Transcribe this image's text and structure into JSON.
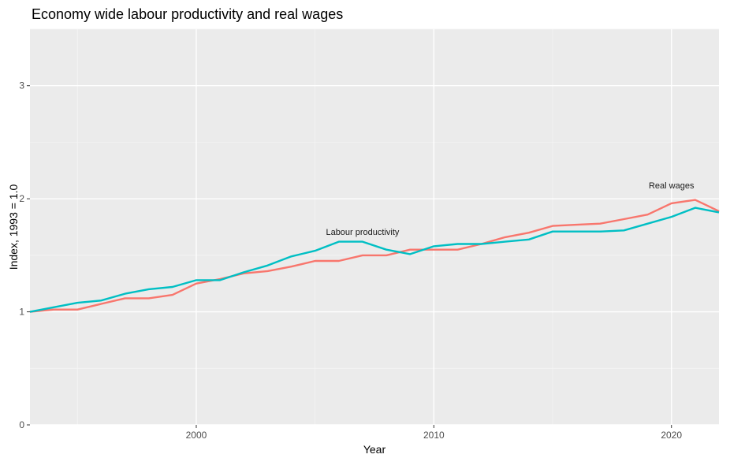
{
  "chart_data": {
    "type": "line",
    "title": "Economy wide labour productivity and real wages",
    "xlabel": "Year",
    "ylabel": "Index, 1993 = 1.0",
    "xlim": [
      1993,
      2022
    ],
    "ylim": [
      0,
      3.5
    ],
    "x_ticks": [
      2000,
      2010,
      2020
    ],
    "x_tick_labels": [
      "2000",
      "2010",
      "2020"
    ],
    "y_ticks": [
      0,
      1,
      2,
      3
    ],
    "y_tick_labels": [
      "0",
      "1",
      "2",
      "3"
    ],
    "grid": true,
    "legend": "none",
    "x": [
      1993,
      1994,
      1995,
      1996,
      1997,
      1998,
      1999,
      2000,
      2001,
      2002,
      2003,
      2004,
      2005,
      2006,
      2007,
      2008,
      2009,
      2010,
      2011,
      2012,
      2013,
      2014,
      2015,
      2016,
      2017,
      2018,
      2019,
      2020,
      2021,
      2022
    ],
    "series": [
      {
        "color": "#F8766D",
        "values": [
          1.0,
          1.02,
          1.02,
          1.07,
          1.12,
          1.12,
          1.15,
          1.25,
          1.29,
          1.34,
          1.36,
          1.4,
          1.45,
          1.45,
          1.5,
          1.5,
          1.55,
          1.55,
          1.55,
          1.6,
          1.66,
          1.7,
          1.76,
          1.77,
          1.78,
          1.82,
          1.86,
          1.96,
          1.99,
          1.89
        ]
      },
      {
        "color": "#00BFC4",
        "values": [
          1.0,
          1.04,
          1.08,
          1.1,
          1.16,
          1.2,
          1.22,
          1.28,
          1.28,
          1.35,
          1.41,
          1.49,
          1.54,
          1.62,
          1.62,
          1.55,
          1.51,
          1.58,
          1.6,
          1.6,
          1.62,
          1.64,
          1.71,
          1.71,
          1.71,
          1.72,
          1.78,
          1.84,
          1.92,
          1.88
        ]
      }
    ],
    "annotations": [
      {
        "text": "Labour productivity",
        "x": 2007,
        "y": 1.68
      },
      {
        "text": "Real wages",
        "x": 2020,
        "y": 2.09
      }
    ]
  }
}
